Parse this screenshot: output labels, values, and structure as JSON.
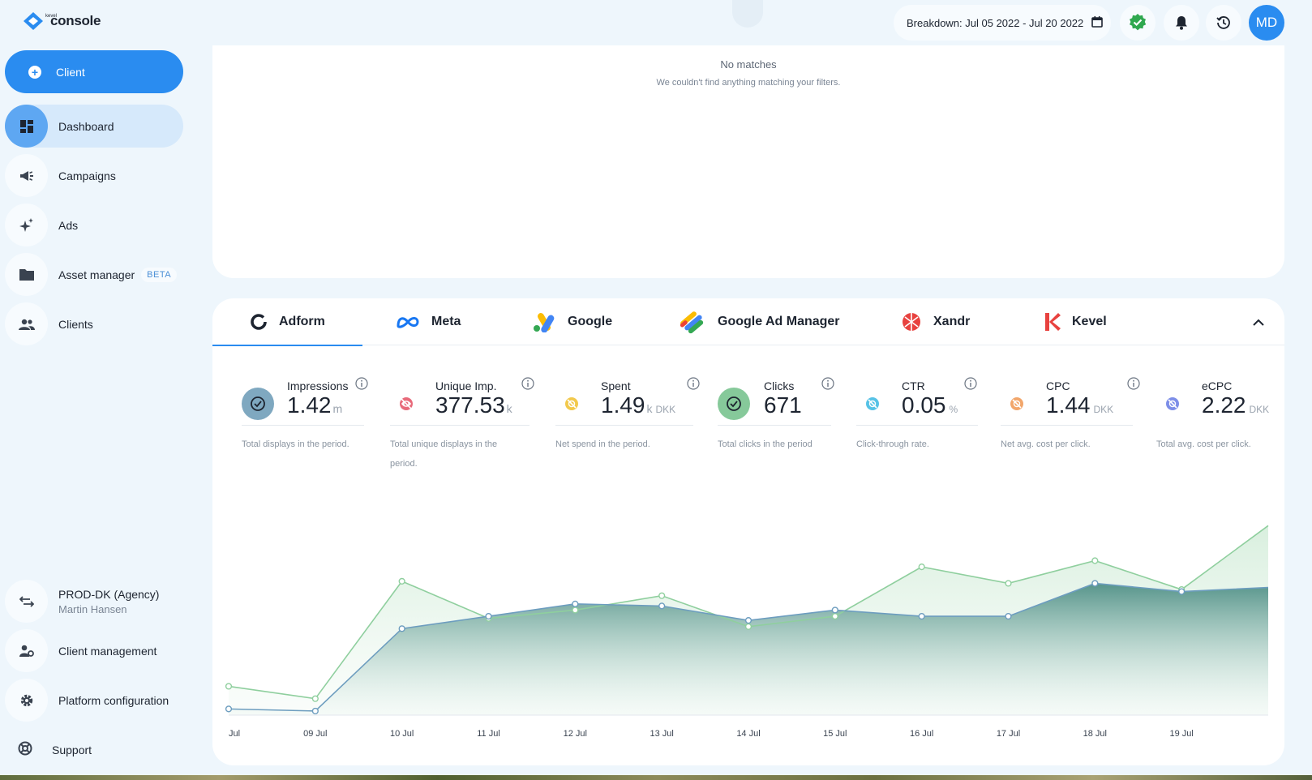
{
  "app": {
    "brand_small": "kevel",
    "brand": "console"
  },
  "sidebar": {
    "client_button": "Client",
    "items": [
      {
        "label": "Dashboard",
        "icon": "dashboard-icon"
      },
      {
        "label": "Campaigns",
        "icon": "megaphone-icon"
      },
      {
        "label": "Ads",
        "icon": "sparkles-icon"
      },
      {
        "label": "Asset manager",
        "icon": "folder-icon",
        "badge": "BETA"
      },
      {
        "label": "Clients",
        "icon": "users-icon"
      }
    ],
    "account": {
      "name": "PROD-DK (Agency)",
      "user": "Martin Hansen"
    },
    "client_management": "Client management",
    "platform_configuration": "Platform configuration",
    "support": "Support"
  },
  "topbar": {
    "breakdown": "Breakdown: Jul 05 2022 - Jul 20 2022",
    "avatar_initials": "MD"
  },
  "empty_state": {
    "title": "No matches",
    "subtitle": "We couldn't find anything matching your filters."
  },
  "tabs": [
    {
      "label": "Adform"
    },
    {
      "label": "Meta"
    },
    {
      "label": "Google"
    },
    {
      "label": "Google Ad Manager"
    },
    {
      "label": "Xandr"
    },
    {
      "label": "Kevel"
    }
  ],
  "metrics": [
    {
      "label": "Impressions",
      "value": "1.42",
      "unit": "m",
      "desc": "Total displays in the period.",
      "color": "#7fa8c0"
    },
    {
      "label": "Unique Imp.",
      "value": "377.53",
      "unit": "k",
      "desc": "Total unique displays in the period.",
      "color": "#e86a7a"
    },
    {
      "label": "Spent",
      "value": "1.49",
      "unit": "k",
      "unit2": "DKK",
      "desc": "Net spend in the period.",
      "color": "#f2c94c"
    },
    {
      "label": "Clicks",
      "value": "671",
      "unit": "",
      "desc": "Total clicks in the period",
      "color": "#86c99a"
    },
    {
      "label": "CTR",
      "value": "0.05",
      "unit": "%",
      "desc": "Click-through rate.",
      "color": "#56c2e6"
    },
    {
      "label": "CPC",
      "value": "1.44",
      "unit": "DKK",
      "desc": "Net avg. cost per click.",
      "color": "#f2a66b"
    },
    {
      "label": "eCPC",
      "value": "2.22",
      "unit": "DKK",
      "desc": "Total avg. cost per click.",
      "color": "#7d8ee8"
    }
  ],
  "chart_data": {
    "type": "area",
    "categories": [
      "Jul",
      "09 Jul",
      "10 Jul",
      "11 Jul",
      "12 Jul",
      "13 Jul",
      "14 Jul",
      "15 Jul",
      "16 Jul",
      "17 Jul",
      "18 Jul",
      "19 Jul",
      ""
    ],
    "series": [
      {
        "color": "#8fcf9e",
        "values": [
          14,
          8,
          65,
          47,
          51,
          58,
          43,
          48,
          72,
          64,
          75,
          61,
          92
        ]
      },
      {
        "color": "#6d9dbf",
        "values": [
          3,
          2,
          42,
          48,
          54,
          53,
          46,
          51,
          48,
          48,
          64,
          60,
          62
        ]
      }
    ],
    "ylim": [
      0,
      100
    ],
    "grid": false
  },
  "colors": {
    "accent": "#2a8cf0",
    "green_series": "#8fcf9e",
    "blue_series": "#6d9dbf"
  }
}
